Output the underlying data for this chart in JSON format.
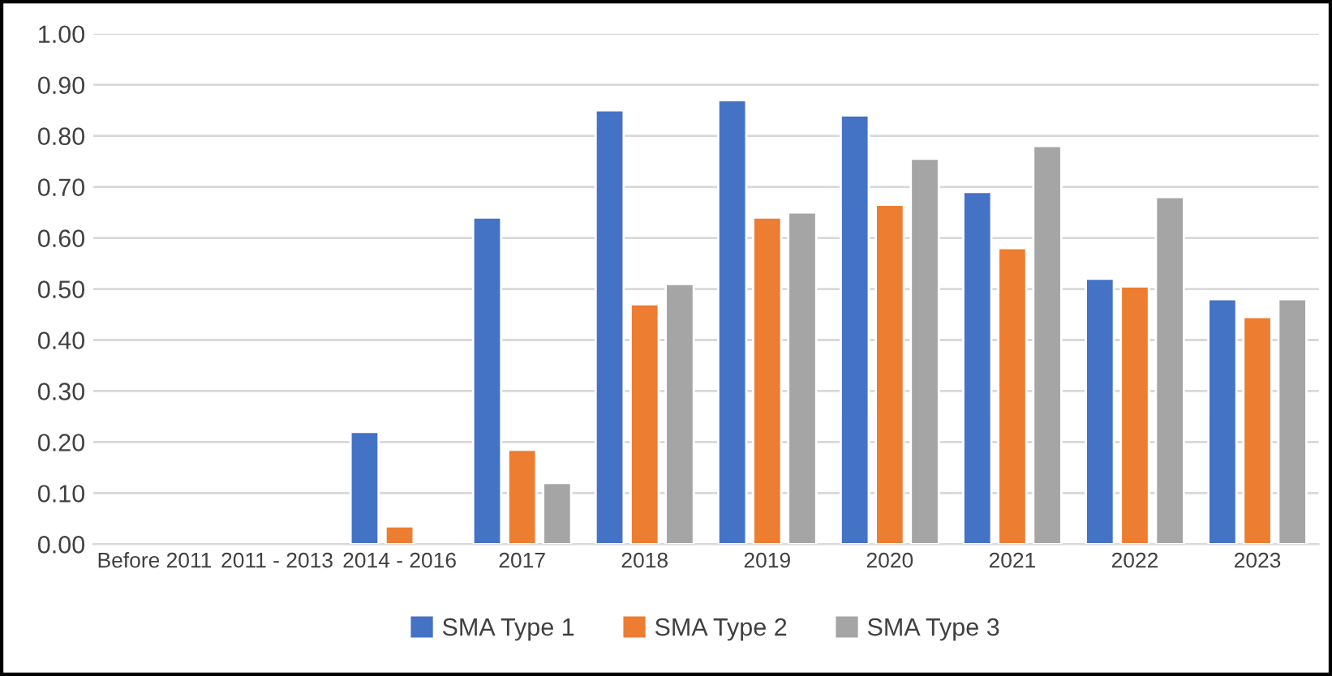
{
  "chart_data": {
    "type": "bar",
    "categories": [
      "Before 2011",
      "2011 - 2013",
      "2014 - 2016",
      "2017",
      "2018",
      "2019",
      "2020",
      "2021",
      "2022",
      "2023"
    ],
    "series": [
      {
        "name": "SMA Type 1",
        "color": "#4472c4",
        "values": [
          null,
          null,
          0.22,
          0.64,
          0.85,
          0.87,
          0.84,
          0.69,
          0.52,
          0.48
        ]
      },
      {
        "name": "SMA Type 2",
        "color": "#ed7d31",
        "values": [
          null,
          null,
          0.035,
          0.185,
          0.47,
          0.64,
          0.665,
          0.58,
          0.505,
          0.445
        ]
      },
      {
        "name": "SMA Type 3",
        "color": "#a5a5a5",
        "values": [
          null,
          null,
          null,
          0.12,
          0.51,
          0.65,
          0.755,
          0.78,
          0.68,
          0.48
        ]
      }
    ],
    "ylim": [
      0,
      1.0
    ],
    "yticks": [
      {
        "value": 0,
        "label": "0.00"
      },
      {
        "value": 0.1,
        "label": "0.10"
      },
      {
        "value": 0.2,
        "label": "0.20"
      },
      {
        "value": 0.3,
        "label": "0.30"
      },
      {
        "value": 0.4,
        "label": "0.40"
      },
      {
        "value": 0.5,
        "label": "0.50"
      },
      {
        "value": 0.6,
        "label": "0.60"
      },
      {
        "value": 0.7,
        "label": "0.70"
      },
      {
        "value": 0.8,
        "label": "0.80"
      },
      {
        "value": 0.9,
        "label": "0.90"
      },
      {
        "value": 1.0,
        "label": "1.00"
      }
    ],
    "grid": "y",
    "legend": "bottom"
  }
}
